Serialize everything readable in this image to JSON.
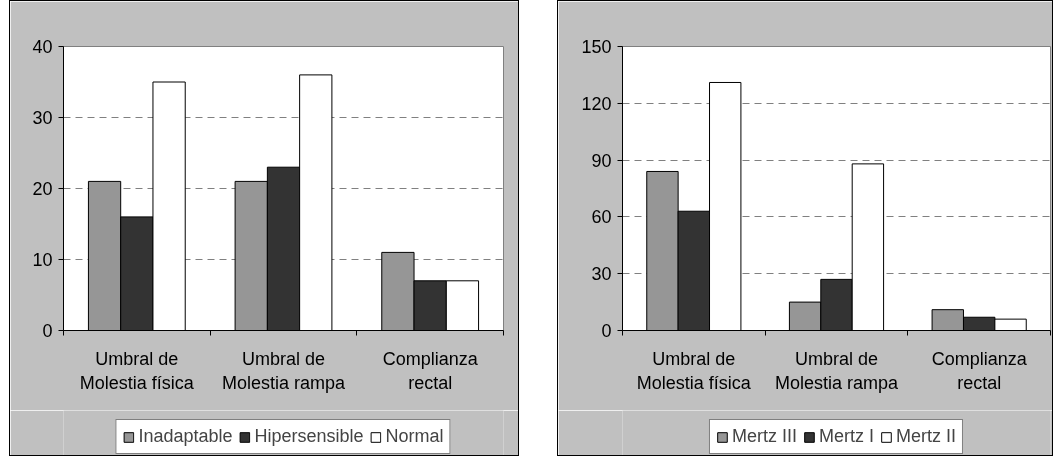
{
  "chart_data": [
    {
      "type": "bar",
      "categories": [
        "Umbral de Molestia física",
        "Umbral de Molestia rampa",
        "Complianza rectal"
      ],
      "series": [
        {
          "name": "Inadaptable",
          "color": "#969696",
          "values": [
            21,
            21,
            11
          ]
        },
        {
          "name": "Hipersensible",
          "color": "#333333",
          "values": [
            16,
            23,
            7
          ]
        },
        {
          "name": "Normal",
          "color": "#ffffff",
          "values": [
            35,
            36,
            7
          ]
        }
      ],
      "ylim": [
        0,
        40
      ],
      "yticks": [
        0,
        10,
        20,
        30,
        40
      ],
      "grid": "y",
      "legend": "bottom"
    },
    {
      "type": "bar",
      "categories": [
        "Umbral de Molestia física",
        "Umbral de Molestia rampa",
        "Complianza rectal"
      ],
      "series": [
        {
          "name": "Mertz III",
          "color": "#969696",
          "values": [
            84,
            15,
            11
          ]
        },
        {
          "name": "Mertz I",
          "color": "#333333",
          "values": [
            63,
            27,
            7
          ]
        },
        {
          "name": "Mertz II",
          "color": "#ffffff",
          "values": [
            131,
            88,
            6
          ]
        }
      ],
      "ylim": [
        0,
        150
      ],
      "yticks": [
        0,
        30,
        60,
        90,
        120,
        150
      ],
      "grid": "y",
      "legend": "bottom"
    }
  ]
}
